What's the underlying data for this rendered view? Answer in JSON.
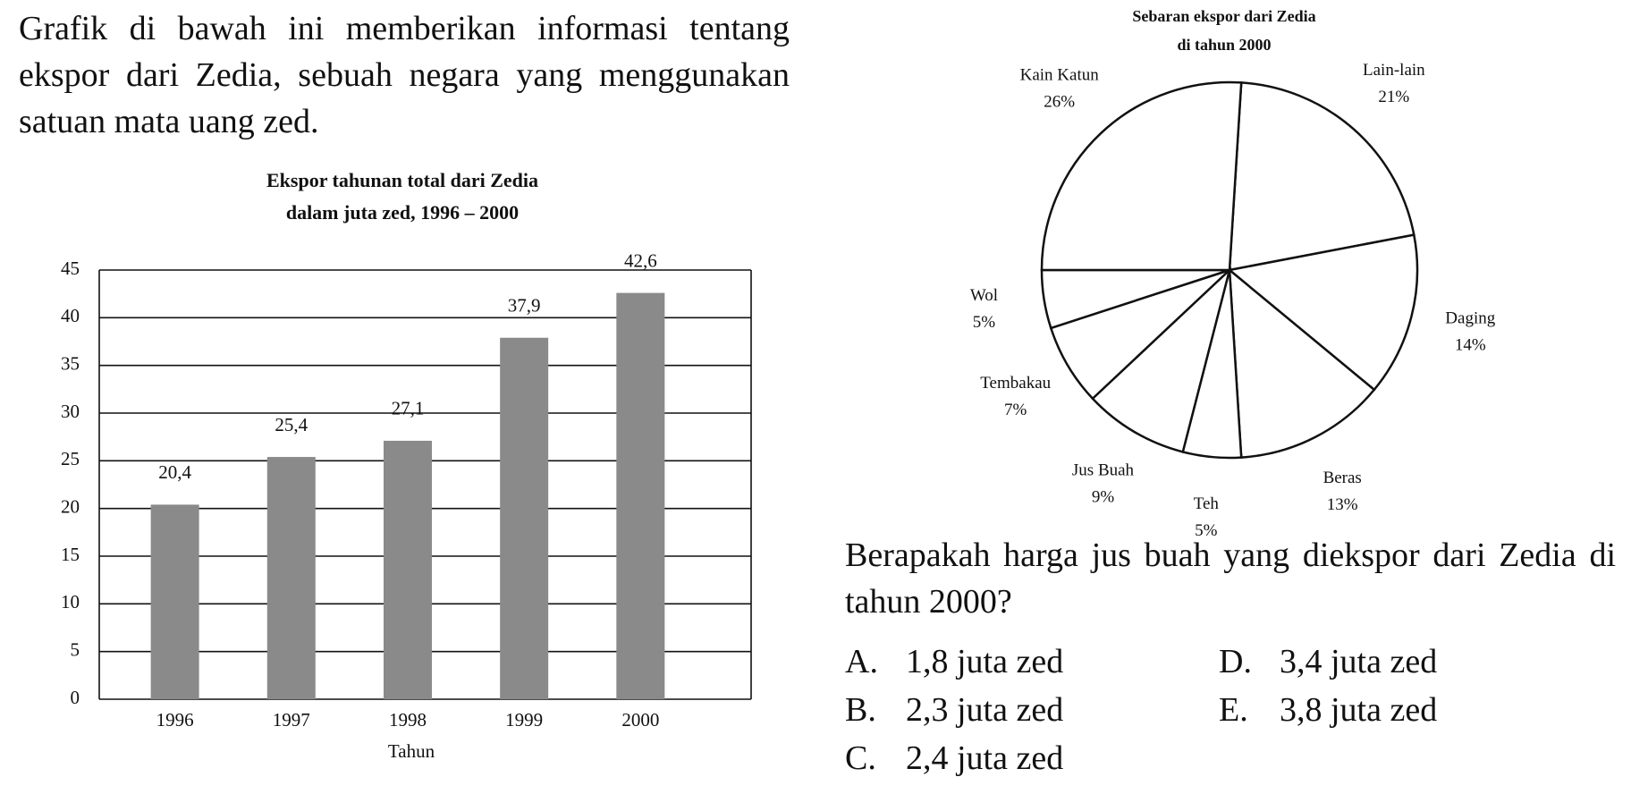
{
  "intro": "Grafik di bawah ini memberikan informasi tentang ekspor dari Zedia, sebuah negara yang menggunakan satuan mata uang zed.",
  "chart_data": [
    {
      "type": "bar",
      "title": "Ekspor tahunan total dari Zedia",
      "subtitle": "dalam juta zed, 1996 – 2000",
      "xlabel": "Tahun",
      "categories": [
        "1996",
        "1997",
        "1998",
        "1999",
        "2000"
      ],
      "values": [
        20.4,
        25.4,
        27.1,
        37.9,
        42.6
      ],
      "value_labels": [
        "20,4",
        "25,4",
        "27,1",
        "37,9",
        "42,6"
      ],
      "color": "#8a8a8a",
      "ylim": [
        0,
        45
      ],
      "yticks": [
        0,
        5,
        10,
        15,
        20,
        25,
        30,
        35,
        40,
        45
      ],
      "grid": true
    },
    {
      "type": "pie",
      "title": "Sebaran ekspor dari Zedia",
      "subtitle": "di tahun 2000",
      "categories": [
        "Lain-lain",
        "Daging",
        "Beras",
        "Teh",
        "Jus Buah",
        "Tembakau",
        "Wol",
        "Kain Katun"
      ],
      "values": [
        21,
        14,
        13,
        5,
        9,
        7,
        5,
        26
      ],
      "value_labels": [
        "21%",
        "14%",
        "13%",
        "5%",
        "9%",
        "7%",
        "5%",
        "26%"
      ],
      "color": "#ffffff"
    }
  ],
  "question": "Berapakah harga jus buah yang diekspor dari Zedia di tahun 2000?",
  "options": [
    {
      "letter": "A.",
      "text": "1,8 juta zed"
    },
    {
      "letter": "B.",
      "text": "2,3 juta zed"
    },
    {
      "letter": "C.",
      "text": "2,4 juta zed"
    },
    {
      "letter": "D.",
      "text": "3,4 juta zed"
    },
    {
      "letter": "E.",
      "text": "3,8 juta zed"
    }
  ]
}
